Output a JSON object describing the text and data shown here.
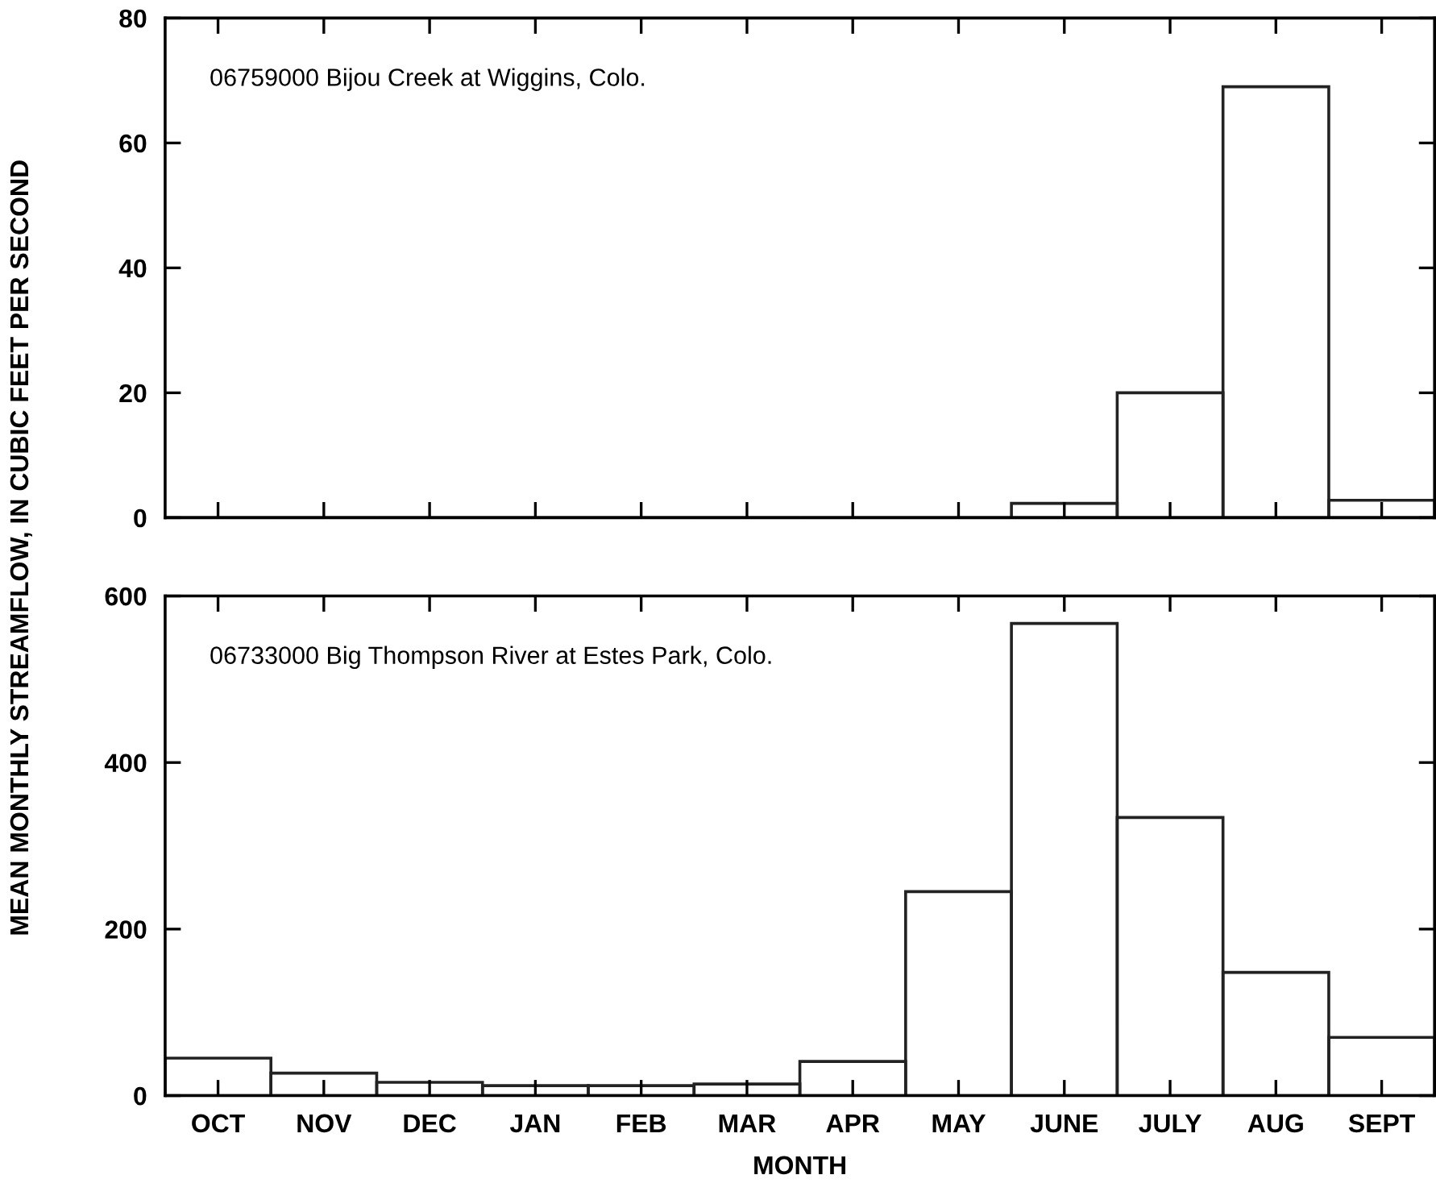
{
  "chart_data": [
    {
      "type": "bar",
      "categories": [
        null,
        null,
        null,
        null,
        null,
        null,
        null,
        null,
        null,
        null,
        null,
        null
      ],
      "values": [
        0,
        0,
        0,
        0,
        0,
        0,
        0,
        0,
        2.3,
        20,
        69,
        2.8
      ],
      "color": "#222222",
      "ylim": [
        0,
        80
      ],
      "yticks": [
        0,
        20,
        40,
        60,
        80
      ],
      "ylabel": "MEAN MONTHLY STREAMFLOW, IN CUBIC FEET PER SECOND",
      "annotations": [
        "06759000 Bijou Creek at Wiggins, Colo."
      ],
      "tick_labels": "y",
      "grid": false,
      "legend": false
    },
    {
      "type": "bar",
      "categories": [
        "OCT",
        "NOV",
        "DEC",
        "JAN",
        "FEB",
        "MAR",
        "APR",
        "MAY",
        "JUNE",
        "JULY",
        "AUG",
        "SEPT"
      ],
      "values": [
        45,
        27,
        16,
        12,
        12,
        14,
        41,
        245,
        567,
        334,
        148,
        70
      ],
      "color": "#222222",
      "ylim": [
        0,
        600
      ],
      "yticks": [
        0,
        200,
        400,
        600
      ],
      "xlabel": "MONTH",
      "annotations": [
        "06733000 Big Thompson River at Estes Park, Colo."
      ],
      "grid": false,
      "legend": false
    }
  ]
}
